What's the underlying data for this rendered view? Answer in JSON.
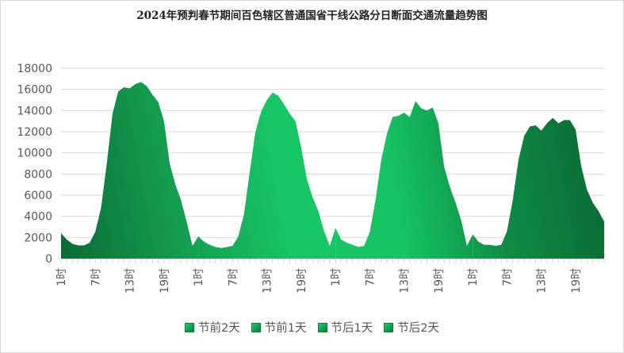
{
  "chart_data": {
    "type": "area",
    "title": "2024年预判春节期间百色辖区普通国省干线公路分日断面交通流量趋势图",
    "xlabel": "",
    "ylabel": "",
    "ylim": [
      0,
      18000
    ],
    "yticks": [
      0,
      2000,
      4000,
      6000,
      8000,
      10000,
      12000,
      14000,
      16000,
      18000
    ],
    "grid": true,
    "legend_position": "bottom",
    "hour_labels": [
      "1时",
      "7时",
      "13时",
      "19时"
    ],
    "hours_labeled": [
      1,
      7,
      13,
      19
    ],
    "series": [
      {
        "name": "节前2天",
        "values": [
          2400,
          1800,
          1400,
          1250,
          1250,
          1500,
          2550,
          4800,
          9000,
          13700,
          15800,
          16200,
          16100,
          16500,
          16700,
          16300,
          15500,
          14800,
          13000,
          9000,
          7000,
          5500,
          3400,
          1200
        ]
      },
      {
        "name": "节前1天",
        "values": [
          2100,
          1600,
          1300,
          1100,
          1000,
          1100,
          1200,
          2100,
          4200,
          8200,
          12000,
          13900,
          15000,
          15700,
          15400,
          14600,
          13700,
          13000,
          10500,
          7500,
          5800,
          4500,
          2600,
          1200
        ]
      },
      {
        "name": "节后1天",
        "values": [
          2900,
          1800,
          1500,
          1300,
          1100,
          1200,
          2500,
          5500,
          9300,
          11800,
          13400,
          13500,
          13800,
          13400,
          14900,
          14200,
          14000,
          14300,
          12800,
          8700,
          6800,
          5300,
          3600,
          1200
        ]
      },
      {
        "name": "节后2天",
        "values": [
          2300,
          1600,
          1300,
          1300,
          1200,
          1300,
          2600,
          5500,
          9300,
          11600,
          12500,
          12600,
          12100,
          12800,
          13300,
          12800,
          13100,
          13100,
          12200,
          8700,
          6500,
          5300,
          4500,
          3500
        ]
      }
    ],
    "colors": {
      "dark": "#0b6b34",
      "mid": "#13944c",
      "bright": "#18c666"
    }
  }
}
